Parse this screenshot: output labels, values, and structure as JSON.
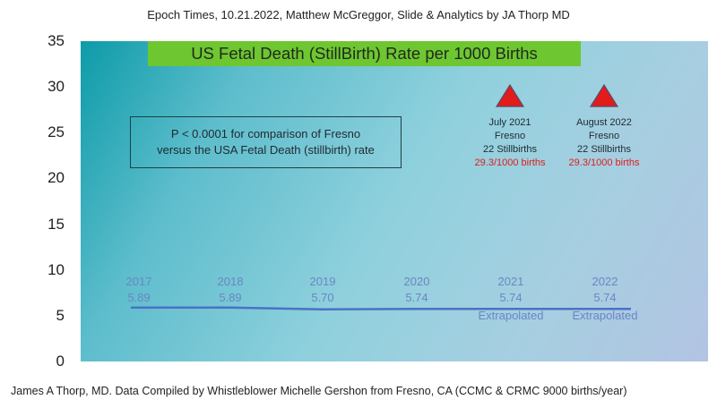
{
  "header": "Epoch Times,  10.21.2022, Matthew McGreggor, Slide & Analytics by  JA Thorp MD",
  "footer": "James A Thorp, MD.  Data Compiled by Whistleblower Michelle Gershon from Fresno, CA (CCMC & CRMC 9000 births/year)",
  "chart_data": {
    "type": "line",
    "title": "US Fetal Death (StillBirth) Rate per 1000 Births",
    "xlabel": "",
    "ylabel": "",
    "ylim": [
      0,
      35
    ],
    "yticks": [
      "0",
      "5",
      "10",
      "15",
      "20",
      "25",
      "30",
      "35"
    ],
    "grid": false,
    "series": [
      {
        "x": [
          "2017",
          "2018",
          "2019",
          "2020",
          "2021",
          "2022"
        ],
        "values": [
          5.89,
          5.89,
          5.7,
          5.74,
          5.74,
          5.74
        ],
        "value_labels": [
          "5.89",
          "5.89",
          "5.70",
          "5.74",
          "5.74",
          "5.74"
        ],
        "notes": [
          "",
          "",
          "",
          "",
          "Extrapolated",
          "Extrapolated"
        ],
        "color": "#4a72c4"
      }
    ],
    "annotation_box": {
      "line1": "P < 0.0001 for comparison of Fresno",
      "line2": "versus the USA Fetal Death (stillbirth) rate"
    },
    "markers": [
      {
        "x": "2021",
        "y": 29.3,
        "line1": "July 2021",
        "line2": "Fresno",
        "line3": "22 Stillbirths",
        "line4": "29.3/1000 births",
        "color": "#e21b1b"
      },
      {
        "x": "2022",
        "y": 29.3,
        "line1": "August 2022",
        "line2": "Fresno",
        "line3": "22 Stillbirths",
        "line4": "29.3/1000 births",
        "color": "#e21b1b"
      }
    ]
  }
}
